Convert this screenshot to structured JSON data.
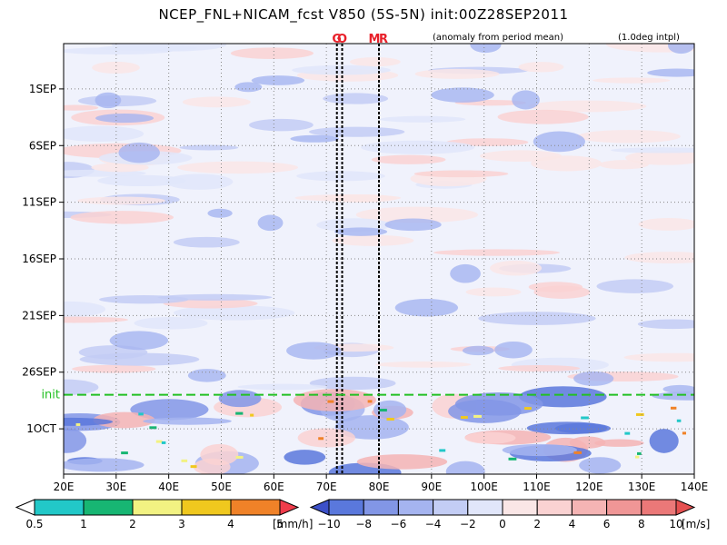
{
  "chart_data": {
    "type": "heatmap",
    "title": "NCEP_FNL+NICAM_fcst V850 (5S-5N) init:00Z28SEP2011",
    "annotation_left": "(anomaly from period mean)",
    "annotation_right": "(1.0deg intpl)",
    "xlabel": "",
    "ylabel": "",
    "xlim": [
      20,
      140
    ],
    "x_ticks": [
      20,
      30,
      40,
      50,
      60,
      70,
      80,
      90,
      100,
      110,
      120,
      130,
      140
    ],
    "x_tick_labels": [
      "20E",
      "30E",
      "40E",
      "50E",
      "60E",
      "70E",
      "80E",
      "90E",
      "100E",
      "110E",
      "120E",
      "130E",
      "140E"
    ],
    "y_ticks": [
      {
        "date": "2011-09-01",
        "label": "1SEP"
      },
      {
        "date": "2011-09-06",
        "label": "6SEP"
      },
      {
        "date": "2011-09-11",
        "label": "11SEP"
      },
      {
        "date": "2011-09-16",
        "label": "16SEP"
      },
      {
        "date": "2011-09-21",
        "label": "21SEP"
      },
      {
        "date": "2011-09-26",
        "label": "26SEP"
      },
      {
        "date": "2011-10-01",
        "label": "1OCT"
      }
    ],
    "ylim": [
      "2011-08-28",
      "2011-10-05"
    ],
    "init_line": {
      "date": "2011-09-28",
      "label": "init"
    },
    "markers": [
      {
        "lon": 72,
        "label": "G"
      },
      {
        "lon": 73,
        "label": "O"
      },
      {
        "lon": 80,
        "label": "M"
      },
      {
        "lon": 80,
        "label": "R"
      }
    ],
    "colorbar_precip": {
      "levels": [
        "0.5",
        "1",
        "2",
        "3",
        "4",
        "5"
      ],
      "unit": "[mm/h]",
      "colors": [
        "#ffffff",
        "#22c8c8",
        "#17b673",
        "#f2f282",
        "#f0c81e",
        "#f08228",
        "#f03c4b"
      ]
    },
    "colorbar_wind": {
      "levels": [
        "−10",
        "−8",
        "−6",
        "−4",
        "−2",
        "0",
        "2",
        "4",
        "6",
        "8",
        "10"
      ],
      "unit": "[m/s]",
      "colors": [
        "#3c50c8",
        "#5a78dc",
        "#8296e6",
        "#a5b4f0",
        "#c3cdf5",
        "#e1e6fa",
        "#fae6e6",
        "#fad2d2",
        "#f5b4b4",
        "#f09696",
        "#eb7878",
        "#e65050"
      ]
    }
  }
}
